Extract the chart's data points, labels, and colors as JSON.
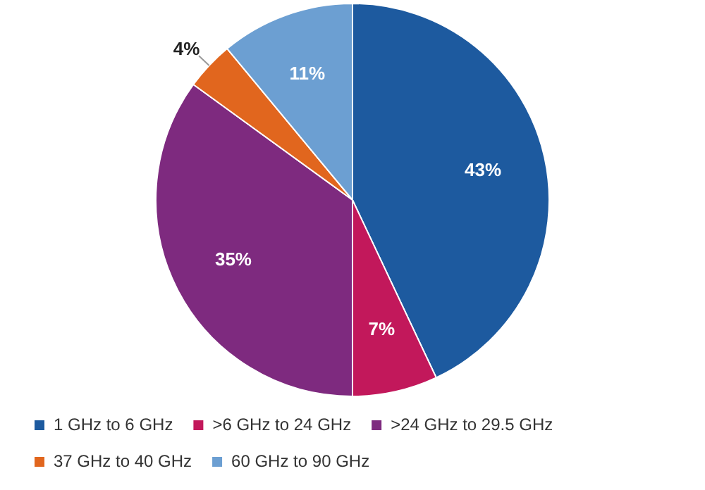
{
  "chart_data": {
    "type": "pie",
    "categories": [
      "1 GHz to 6 GHz",
      ">6 GHz to 24 GHz",
      ">24 GHz to 29.5 GHz",
      "37 GHz to 40 GHz",
      "60 GHz to 90 GHz"
    ],
    "values": [
      43,
      7,
      35,
      4,
      11
    ],
    "colors": [
      "#1d5a9f",
      "#c2185b",
      "#7e2a7f",
      "#e1661e",
      "#6c9fd2"
    ],
    "value_labels": [
      "43%",
      "7%",
      "35%",
      "4%",
      "11%"
    ],
    "legend": "bottom"
  }
}
